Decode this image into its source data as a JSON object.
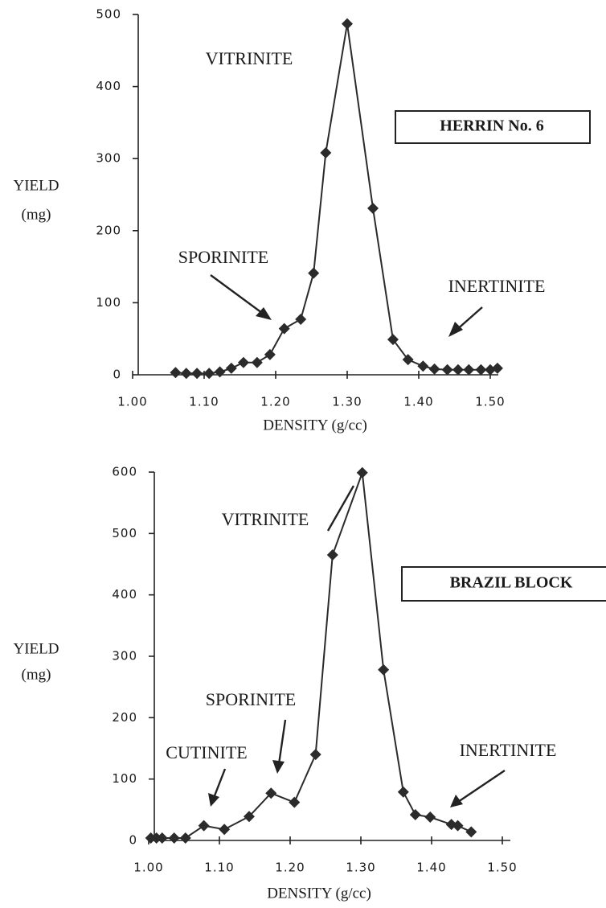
{
  "chart_data": [
    {
      "type": "line",
      "marker": "diamond",
      "color": "#2b2b2b",
      "box_label": "HERRIN No. 6",
      "xlabel": "DENSITY  (g/cc)",
      "ylabel": [
        "YIELD",
        "(mg)"
      ],
      "annotations": [
        "VITRINITE",
        "SPORINITE",
        "INERTINITE"
      ],
      "xlim": [
        1.0,
        1.5
      ],
      "ylim": [
        0,
        500
      ],
      "xticks": [
        {
          "value": 1.0,
          "label": "1.00"
        },
        {
          "value": 1.1,
          "label": "1.10"
        },
        {
          "value": 1.2,
          "label": "1.20"
        },
        {
          "value": 1.3,
          "label": "1.30"
        },
        {
          "value": 1.4,
          "label": "1.40"
        },
        {
          "value": 1.5,
          "label": "1.50"
        }
      ],
      "yticks": [
        0,
        100,
        200,
        300,
        400,
        500
      ],
      "x": [
        1.06,
        1.075,
        1.09,
        1.107,
        1.122,
        1.138,
        1.155,
        1.174,
        1.192,
        1.212,
        1.235,
        1.253,
        1.27,
        1.3,
        1.336,
        1.364,
        1.385,
        1.406,
        1.422,
        1.44,
        1.455,
        1.47,
        1.487,
        1.5,
        1.51
      ],
      "values": [
        3,
        2,
        2,
        2,
        4,
        9,
        17,
        17,
        28,
        64,
        77,
        141,
        308,
        487,
        231,
        49,
        21,
        12,
        8,
        7,
        7,
        7,
        7,
        7,
        9
      ]
    },
    {
      "type": "line",
      "marker": "diamond",
      "color": "#2b2b2b",
      "box_label": "BRAZIL BLOCK",
      "xlabel": "DENSITY  (g/cc)",
      "ylabel": [
        "YIELD",
        "(mg)"
      ],
      "annotations": [
        "VITRINITE",
        "SPORINITE",
        "CUTINITE",
        "INERTINITE"
      ],
      "xlim": [
        1.0,
        1.5
      ],
      "ylim": [
        0,
        600
      ],
      "xticks": [
        {
          "value": 1.0,
          "label": "1.00"
        },
        {
          "value": 1.1,
          "label": "1.10"
        },
        {
          "value": 1.2,
          "label": "1.20"
        },
        {
          "value": 1.3,
          "label": "1.30"
        },
        {
          "value": 1.4,
          "label": "1.40"
        },
        {
          "value": 1.5,
          "label": "1.50"
        }
      ],
      "yticks": [
        0,
        100,
        200,
        300,
        400,
        500,
        600
      ],
      "x": [
        1.003,
        1.011,
        1.019,
        1.036,
        1.052,
        1.078,
        1.107,
        1.142,
        1.173,
        1.206,
        1.236,
        1.26,
        1.302,
        1.332,
        1.36,
        1.377,
        1.398,
        1.428,
        1.437,
        1.456
      ],
      "values": [
        4,
        4,
        4,
        4,
        4,
        24,
        18,
        39,
        77,
        62,
        140,
        465,
        599,
        278,
        79,
        42,
        38,
        26,
        24,
        14
      ]
    }
  ]
}
